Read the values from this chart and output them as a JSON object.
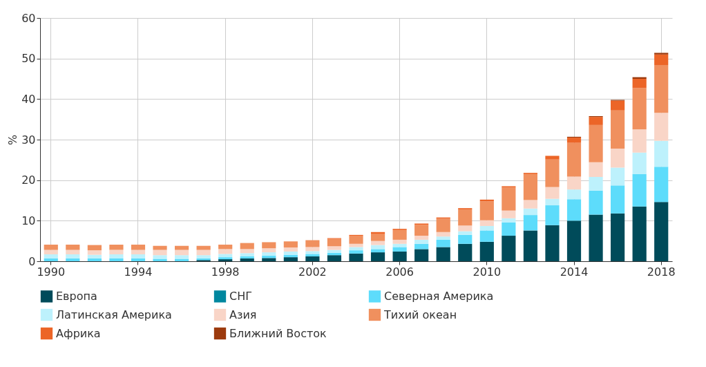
{
  "chart_data": {
    "type": "bar",
    "stacked": true,
    "ylabel": "%",
    "categories": [
      "1990",
      null,
      null,
      null,
      "1994",
      null,
      null,
      null,
      "1998",
      null,
      null,
      null,
      "2002",
      null,
      null,
      null,
      "2006",
      null,
      null,
      null,
      "2010",
      null,
      null,
      null,
      "2014",
      null,
      null,
      null,
      "2018"
    ],
    "ylim": [
      0,
      60
    ],
    "yticks": [
      0,
      10,
      20,
      30,
      40,
      50,
      60
    ],
    "grid": true,
    "legend": "bottom",
    "series": [
      {
        "name": "Европа",
        "color": "#004b5a",
        "values": [
          0,
          0,
          0,
          0,
          0,
          0,
          0,
          0.3,
          0.5,
          0.7,
          0.8,
          1.0,
          1.2,
          1.5,
          1.9,
          2.2,
          2.4,
          3.0,
          3.5,
          4.3,
          4.8,
          6.3,
          7.6,
          8.9,
          10.0,
          11.5,
          11.8,
          13.5,
          14.6
        ]
      },
      {
        "name": "СНГ",
        "color": "#00879f",
        "values": [
          0,
          0,
          0,
          0,
          0,
          0,
          0,
          0,
          0,
          0,
          0,
          0,
          0,
          0,
          0,
          0,
          0,
          0,
          0,
          0,
          0,
          0,
          0,
          0,
          0,
          0,
          0,
          0,
          0
        ]
      },
      {
        "name": "Северная Америка",
        "color": "#5ddcfb",
        "values": [
          0.7,
          0.7,
          0.7,
          0.7,
          0.7,
          0.6,
          0.6,
          0.4,
          0.5,
          0.5,
          0.6,
          0.6,
          0.6,
          0.6,
          0.8,
          0.8,
          1.1,
          1.3,
          1.8,
          2.2,
          2.8,
          3.3,
          3.8,
          4.9,
          5.3,
          5.9,
          6.9,
          8.0,
          8.7
        ]
      },
      {
        "name": "Латинская Америка",
        "color": "#bdf1fc",
        "values": [
          1.0,
          1.0,
          0.9,
          1.0,
          1.0,
          0.9,
          0.9,
          0.8,
          0.8,
          0.8,
          0.8,
          0.8,
          0.7,
          0.7,
          0.8,
          1.0,
          0.8,
          1.0,
          0.8,
          0.9,
          1.1,
          1.0,
          1.6,
          1.6,
          2.4,
          3.4,
          4.4,
          5.3,
          6.4
        ]
      },
      {
        "name": "Азия",
        "color": "#f9d5c7",
        "values": [
          1.1,
          1.1,
          1.1,
          1.1,
          1.1,
          1.3,
          1.3,
          1.3,
          1.2,
          1.0,
          1.0,
          1.0,
          1.0,
          0.9,
          0.8,
          1.0,
          1.0,
          1.0,
          1.1,
          1.4,
          1.4,
          1.9,
          2.1,
          2.9,
          3.2,
          3.6,
          4.7,
          5.7,
          6.9
        ]
      },
      {
        "name": "Тихий океан",
        "color": "#f0905e",
        "values": [
          1.3,
          1.3,
          1.3,
          1.3,
          1.3,
          1.0,
          1.0,
          1.0,
          1.1,
          1.5,
          1.5,
          1.5,
          1.7,
          1.8,
          1.9,
          1.7,
          2.4,
          2.7,
          3.3,
          4.0,
          4.7,
          5.7,
          6.4,
          6.8,
          8.3,
          9.2,
          9.4,
          10.2,
          11.8
        ]
      },
      {
        "name": "Африка",
        "color": "#ec6527",
        "values": [
          0,
          0,
          0,
          0,
          0,
          0,
          0,
          0,
          0,
          0,
          0,
          0,
          0,
          0.2,
          0.3,
          0.5,
          0.3,
          0.3,
          0.3,
          0.3,
          0.4,
          0.3,
          0.3,
          0.9,
          1.3,
          2.0,
          2.4,
          2.3,
          2.6
        ]
      },
      {
        "name": "Ближний Восток",
        "color": "#9c3a0d",
        "values": [
          0,
          0,
          0,
          0,
          0,
          0,
          0,
          0,
          0,
          0,
          0,
          0,
          0,
          0,
          0,
          0,
          0,
          0,
          0,
          0,
          0,
          0,
          0,
          0,
          0.2,
          0.2,
          0.2,
          0.4,
          0.4
        ]
      }
    ]
  }
}
